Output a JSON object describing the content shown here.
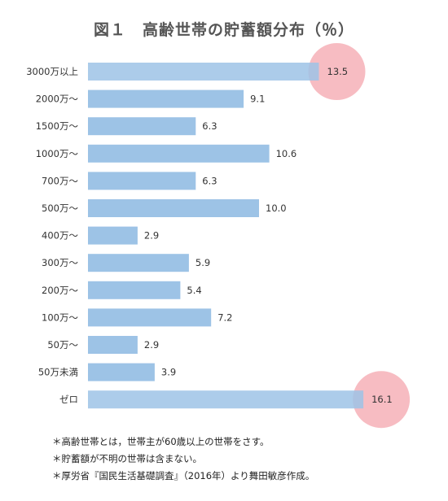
{
  "chart_data": {
    "type": "bar",
    "orientation": "horizontal",
    "title": "図１　高齢世帯の貯蓄額分布（％）",
    "categories": [
      "3000万以上",
      "2000万〜",
      "1500万〜",
      "1000万〜",
      "700万〜",
      "500万〜",
      "400万〜",
      "300万〜",
      "200万〜",
      "100万〜",
      "50万〜",
      "50万未満",
      "ゼロ"
    ],
    "values": [
      13.5,
      9.1,
      6.3,
      10.6,
      6.3,
      10.0,
      2.9,
      5.9,
      5.4,
      7.2,
      2.9,
      3.9,
      16.1
    ],
    "value_labels": [
      "13.5",
      "9.1",
      "6.3",
      "10.6",
      "6.3",
      "10.0",
      "2.9",
      "5.9",
      "5.4",
      "7.2",
      "2.9",
      "3.9",
      "16.1"
    ],
    "xlim": [
      0,
      17
    ],
    "grid": false,
    "highlighted": [
      "3000万以上",
      "ゼロ"
    ],
    "bar_color": "#9dc3e6",
    "highlight_color": "#f4a6ad"
  },
  "notes": [
    "＊高齢世帯とは，世帯主が60歳以上の世帯をさす。",
    "＊貯蓄額が不明の世帯は含まない。",
    "＊厚労省『国民生活基礎調査』（2016年）より舞田敏彦作成。"
  ]
}
